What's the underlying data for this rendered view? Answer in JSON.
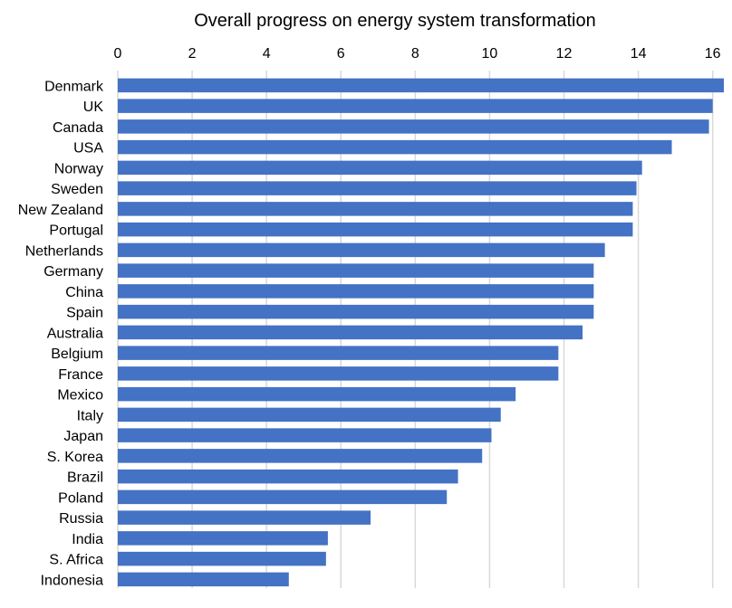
{
  "chart_data": {
    "type": "bar",
    "orientation": "horizontal",
    "title": "Overall progress on energy system transformation",
    "xlabel": "",
    "ylabel": "",
    "xlim": [
      0,
      16.3
    ],
    "xticks": [
      0,
      2,
      4,
      6,
      8,
      10,
      12,
      14,
      16
    ],
    "axis_position": "top",
    "grid": true,
    "legend": "none",
    "bar_color": "#4472c4",
    "categories": [
      "Denmark",
      "UK",
      "Canada",
      "USA",
      "Norway",
      "Sweden",
      "New Zealand",
      "Portugal",
      "Netherlands",
      "Germany",
      "China",
      "Spain",
      "Australia",
      "Belgium",
      "France",
      "Mexico",
      "Italy",
      "Japan",
      "S. Korea",
      "Brazil",
      "Poland",
      "Russia",
      "India",
      "S. Africa",
      "Indonesia"
    ],
    "values": [
      16.3,
      16.0,
      15.9,
      14.9,
      14.1,
      13.95,
      13.85,
      13.85,
      13.1,
      12.8,
      12.8,
      12.8,
      12.5,
      11.85,
      11.85,
      10.7,
      10.3,
      10.05,
      9.8,
      9.15,
      8.85,
      6.8,
      5.65,
      5.6,
      4.6
    ]
  }
}
